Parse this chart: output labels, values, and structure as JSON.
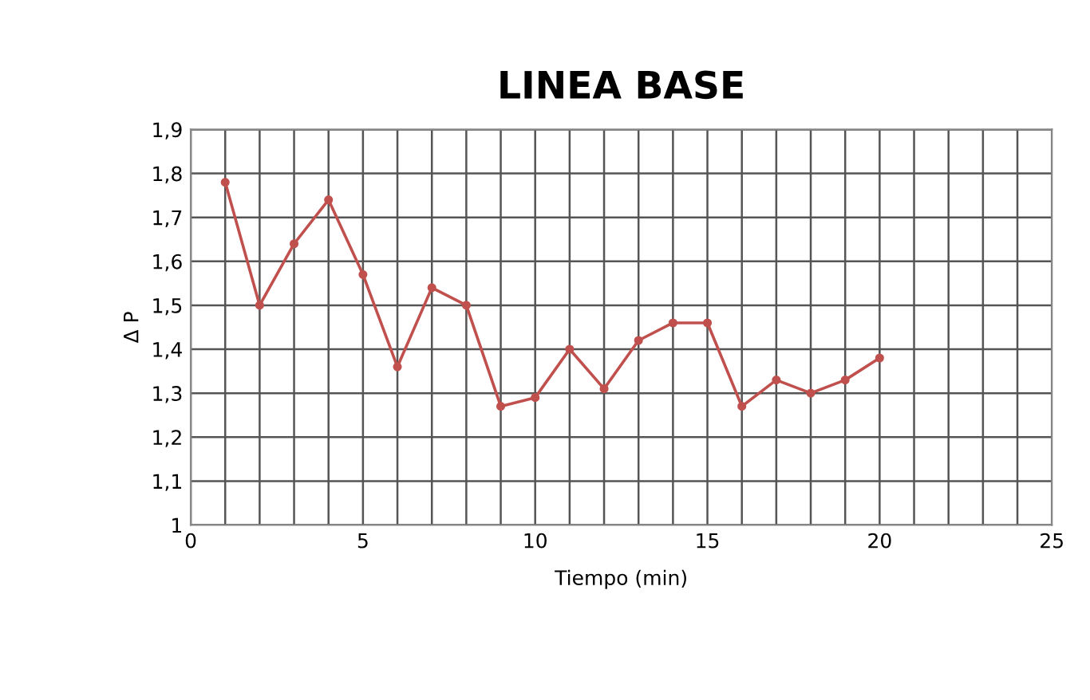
{
  "chart_data": {
    "type": "line",
    "title": "LINEA BASE",
    "xlabel": "Tiempo (min)",
    "ylabel": "Δ P",
    "x": [
      1,
      2,
      3,
      4,
      5,
      6,
      7,
      8,
      9,
      10,
      11,
      12,
      13,
      14,
      15,
      16,
      17,
      18,
      19,
      20
    ],
    "series": [
      {
        "color": "#c0504d",
        "values": [
          1.78,
          1.5,
          1.64,
          1.74,
          1.57,
          1.36,
          1.54,
          1.5,
          1.27,
          1.29,
          1.4,
          1.31,
          1.42,
          1.46,
          1.46,
          1.27,
          1.33,
          1.3,
          1.33,
          1.38
        ]
      }
    ],
    "xlim": [
      0,
      25
    ],
    "xticks": [
      0,
      {
        "value": 1,
        "label": null
      },
      {
        "value": 2,
        "label": null
      },
      {
        "value": 3,
        "label": null
      },
      {
        "value": 4,
        "label": null
      },
      5,
      {
        "value": 6,
        "label": null
      },
      {
        "value": 7,
        "label": null
      },
      {
        "value": 8,
        "label": null
      },
      {
        "value": 9,
        "label": null
      },
      10,
      {
        "value": 11,
        "label": null
      },
      {
        "value": 12,
        "label": null
      },
      {
        "value": 13,
        "label": null
      },
      {
        "value": 14,
        "label": null
      },
      15,
      {
        "value": 16,
        "label": null
      },
      {
        "value": 17,
        "label": null
      },
      {
        "value": 18,
        "label": null
      },
      {
        "value": 19,
        "label": null
      },
      20,
      {
        "value": 21,
        "label": null
      },
      {
        "value": 22,
        "label": null
      },
      {
        "value": 23,
        "label": null
      },
      {
        "value": 24,
        "label": null
      },
      25
    ],
    "ylim": [
      1,
      1.9
    ],
    "yticks": [
      1,
      {
        "value": 1.1,
        "label": "1,1"
      },
      {
        "value": 1.2,
        "label": "1,2"
      },
      {
        "value": 1.3,
        "label": "1,3"
      },
      {
        "value": 1.4,
        "label": "1,4"
      },
      {
        "value": 1.5,
        "label": "1,5"
      },
      {
        "value": 1.6,
        "label": "1,6"
      },
      {
        "value": 1.7,
        "label": "1,7"
      },
      {
        "value": 1.8,
        "label": "1,8"
      },
      {
        "value": 1.9,
        "label": "1,9"
      }
    ],
    "grid": true,
    "marker": "circle",
    "line_style": "solid",
    "legend": false
  }
}
